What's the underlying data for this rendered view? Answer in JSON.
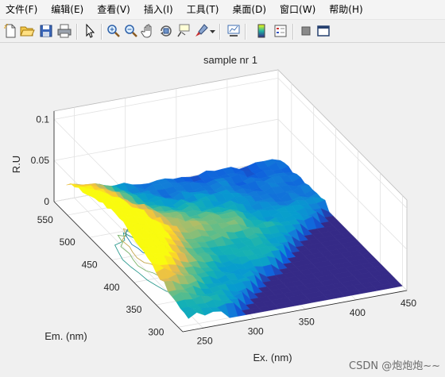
{
  "menubar": {
    "items": [
      "文件(F)",
      "编辑(E)",
      "查看(V)",
      "插入(I)",
      "工具(T)",
      "桌面(D)",
      "窗口(W)",
      "帮助(H)"
    ]
  },
  "toolbar": {
    "buttons": [
      "new-figure-icon",
      "open-file-icon",
      "save-icon",
      "print-icon",
      "pointer-icon",
      "zoom-in-icon",
      "zoom-out-icon",
      "pan-icon",
      "rotate-3d-icon",
      "data-cursor-icon",
      "brush-icon",
      "link-plot-icon",
      "colorbar-icon",
      "legend-icon",
      "hide-plot-tools-icon",
      "show-plot-tools-icon"
    ]
  },
  "chart_data": {
    "type": "surface",
    "title": "sample nr 1",
    "xlabel": "Ex. (nm)",
    "ylabel": "Em. (nm)",
    "zlabel": "R.U",
    "x_ticks": [
      250,
      300,
      350,
      400,
      450
    ],
    "y_ticks": [
      300,
      350,
      400,
      450,
      500,
      550
    ],
    "z_ticks": [
      "0",
      "0.05",
      "0.1"
    ],
    "xlim": [
      230,
      450
    ],
    "ylim": [
      290,
      580
    ],
    "zlim": [
      0,
      0.11
    ],
    "colormap": "parula",
    "contour_on_floor": true,
    "grid": true
  },
  "watermark": "CSDN @炮炮炮~~"
}
